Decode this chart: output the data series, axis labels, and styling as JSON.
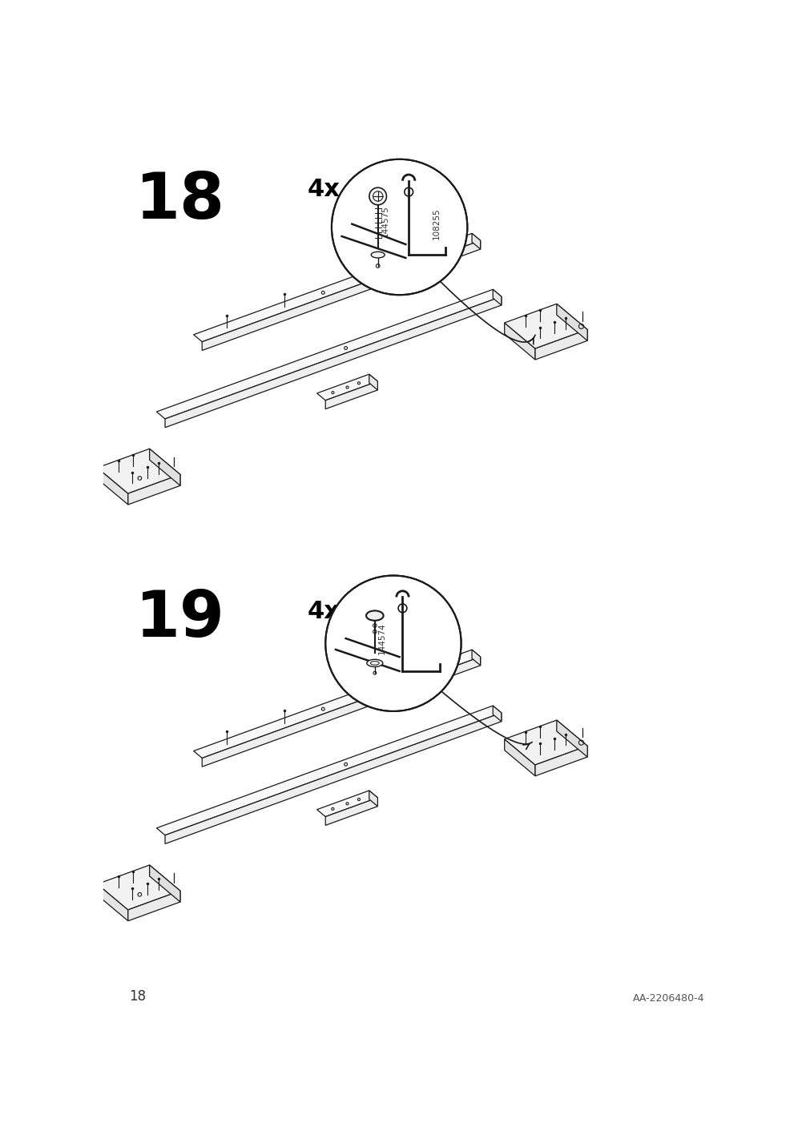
{
  "page_number": "18",
  "footer_code": "AA-2206480-4",
  "background_color": "#ffffff",
  "line_color": "#1a1a1a",
  "step18": {
    "label": "18",
    "qty": "4x",
    "part1": "144575",
    "part2": "108255"
  },
  "step19": {
    "label": "19",
    "qty": "4x",
    "part1": "144574"
  }
}
